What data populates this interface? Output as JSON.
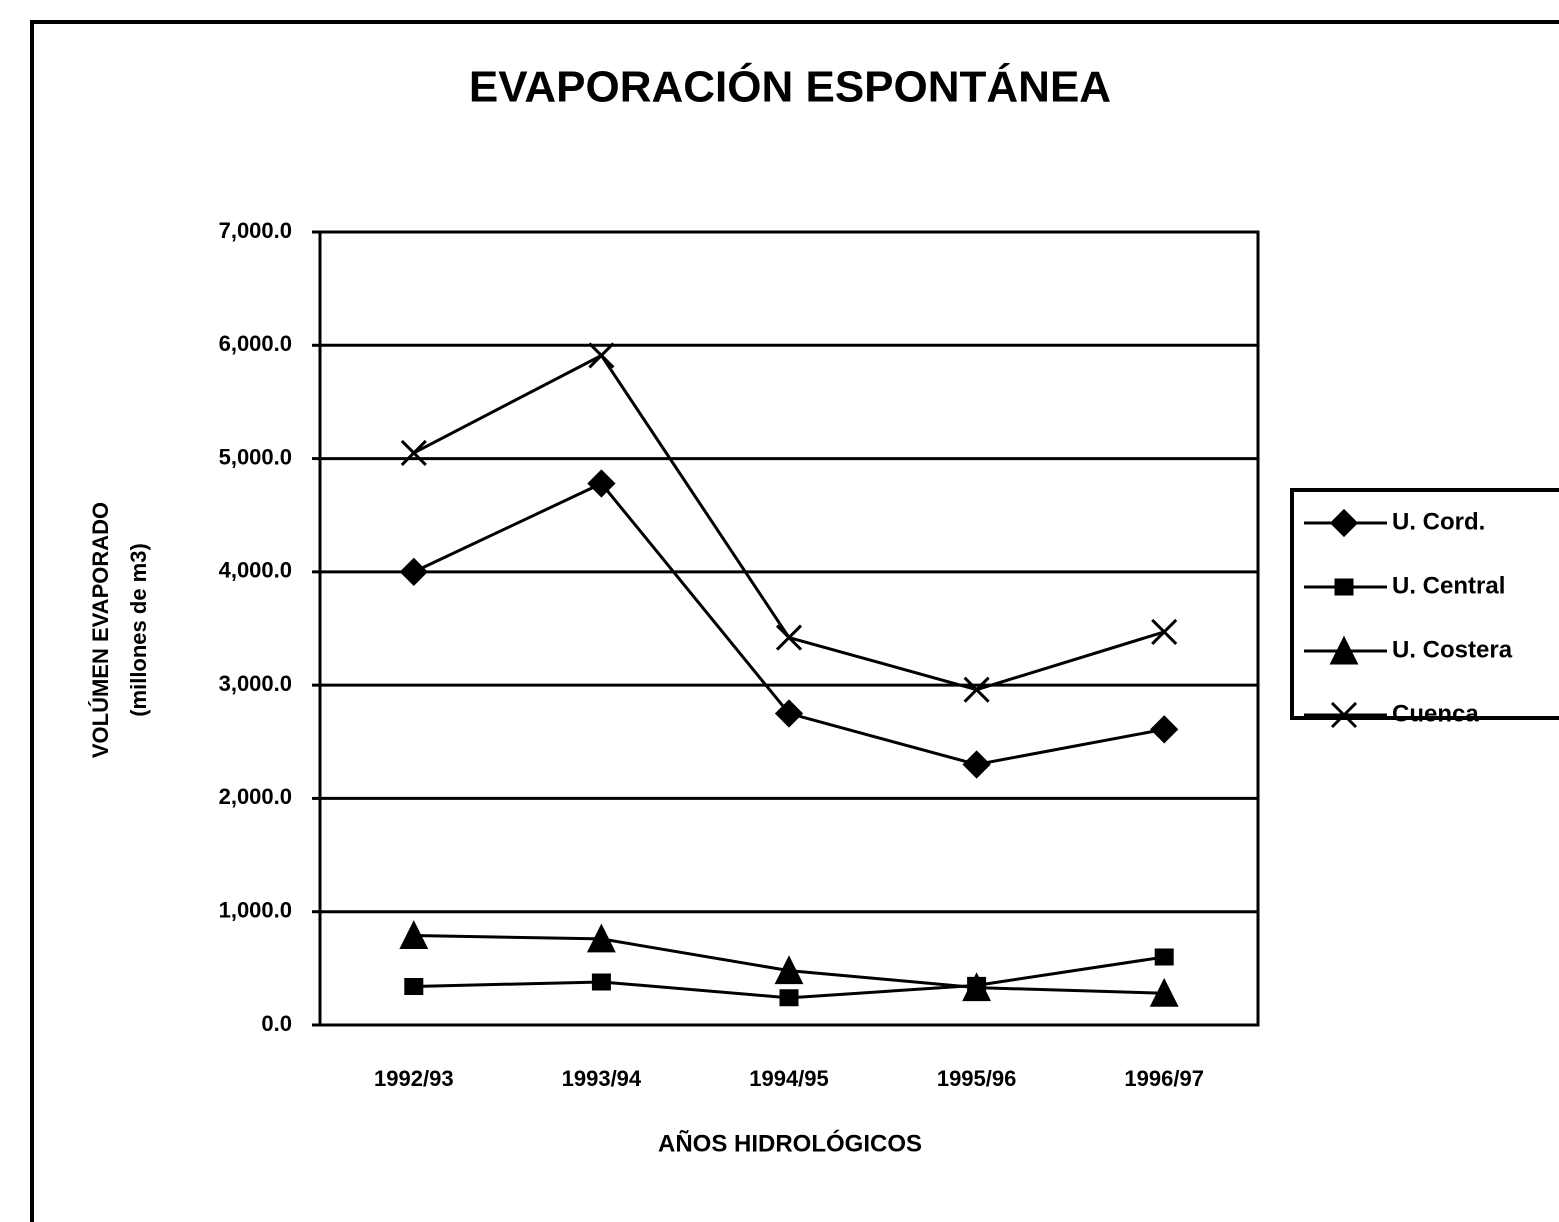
{
  "chart_data": {
    "type": "line",
    "title": "EVAPORACIÓN ESPONTÁNEA",
    "y_label": [
      "VOLÚMEN EVAPORADO",
      "(millones de m3)"
    ],
    "x_label": "AÑOS HIDROLÓGICOS",
    "categories": [
      "1992/93",
      "1993/94",
      "1994/95",
      "1995/96",
      "1996/97"
    ],
    "series": [
      {
        "name": "U. Cord.",
        "color": "#000000",
        "marker": "diamond",
        "values": [
          4000,
          4780,
          2750,
          2300,
          2610
        ]
      },
      {
        "name": "U. Central",
        "color": "#000000",
        "marker": "square",
        "values": [
          340,
          380,
          240,
          350,
          600
        ]
      },
      {
        "name": "U. Costera",
        "color": "#000000",
        "marker": "triangle",
        "values": [
          790,
          760,
          480,
          330,
          280
        ]
      },
      {
        "name": "Cuenca",
        "color": "#000000",
        "marker": "x",
        "values": [
          5050,
          5910,
          3420,
          2960,
          3470
        ]
      }
    ],
    "ylim": [
      0,
      7000
    ],
    "yticks": [
      {
        "value": 0,
        "label": "0.0"
      },
      {
        "value": 1000,
        "label": "1,000.0"
      },
      {
        "value": 2000,
        "label": "2,000.0"
      },
      {
        "value": 3000,
        "label": "3,000.0"
      },
      {
        "value": 4000,
        "label": "4,000.0"
      },
      {
        "value": 5000,
        "label": "5,000.0"
      },
      {
        "value": 6000,
        "label": "6,000.0"
      },
      {
        "value": 7000,
        "label": "7,000.0"
      }
    ],
    "grid": true,
    "legend": "right"
  }
}
